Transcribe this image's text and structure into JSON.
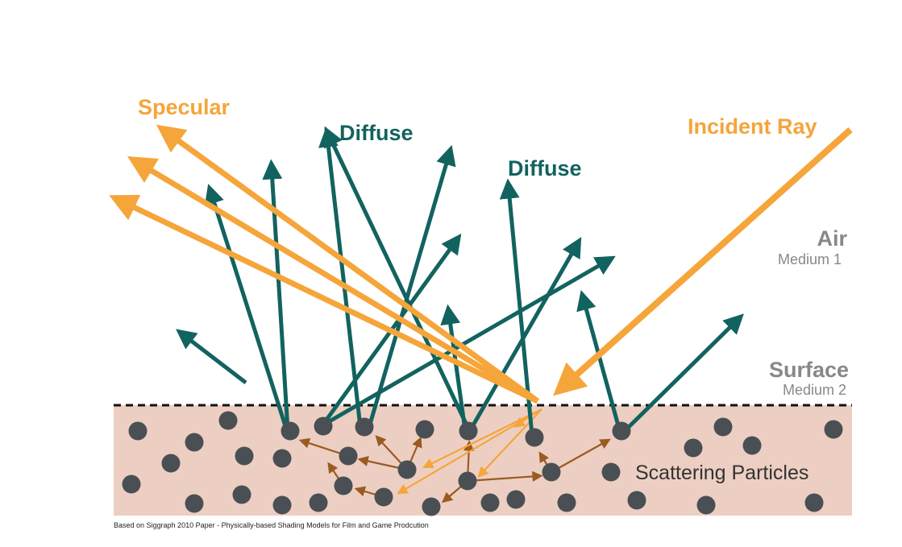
{
  "labels": {
    "specular": "Specular",
    "diffuse_left": "Diffuse",
    "diffuse_right": "Diffuse",
    "incident_ray": "Incident Ray",
    "air": "Air",
    "medium1": "Medium 1",
    "surface": "Surface",
    "medium2": "Medium 2",
    "scattering_particles": "Scattering Particles"
  },
  "caption": "Based on Siggraph 2010 Paper - Physically-based Shading Models for Film and Game Prodcution",
  "colors": {
    "orange": "#f5a53a",
    "teal": "#12635f",
    "brown": "#9a5a22",
    "particle": "#4a4f54",
    "medium": "#eccfc2",
    "gray_text": "#888888",
    "surface_line": "#111111"
  }
}
